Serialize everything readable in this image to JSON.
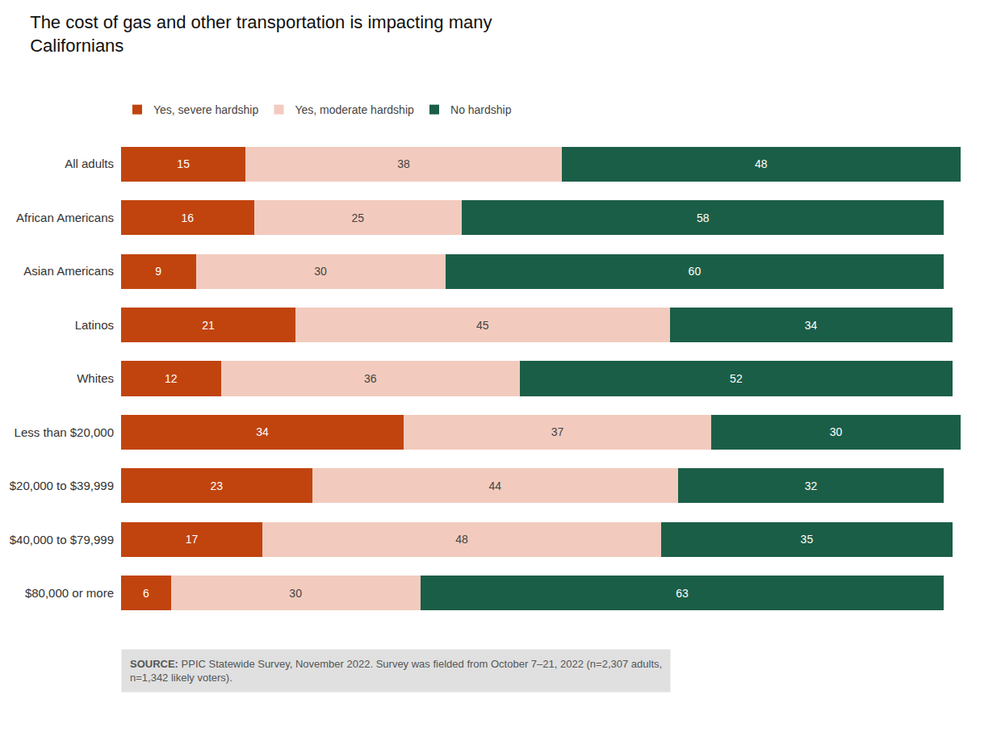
{
  "chart_data": {
    "type": "bar",
    "orientation": "horizontal",
    "stacked": true,
    "title": "The cost of gas and other transportation is impacting many\nCalifornians",
    "categories": [
      "All adults",
      "African Americans",
      "Asian Americans",
      "Latinos",
      "Whites",
      "Less than $20,000",
      "$20,000 to $39,999",
      "$40,000 to $79,999",
      "$80,000 or more"
    ],
    "series": [
      {
        "name": "Yes, severe hardship",
        "color": "#C1440E",
        "values": [
          15,
          16,
          9,
          21,
          12,
          34,
          23,
          17,
          6
        ]
      },
      {
        "name": "Yes, moderate hardship",
        "color": "#F2CBBE",
        "values": [
          38,
          25,
          30,
          45,
          36,
          37,
          44,
          48,
          30
        ]
      },
      {
        "name": "No hardship",
        "color": "#1B5E47",
        "values": [
          48,
          58,
          60,
          34,
          52,
          30,
          32,
          35,
          63
        ]
      }
    ],
    "xlim": [
      0,
      101
    ],
    "tick_labels": "y",
    "grid": false,
    "legend": "top",
    "data_labels": true,
    "annotations": [
      "SOURCE: PPIC Statewide Survey, November 2022. Survey was fielded from October 7–21, 2022 (n=2,307 adults,\nn=1,342 likely voters)."
    ]
  }
}
